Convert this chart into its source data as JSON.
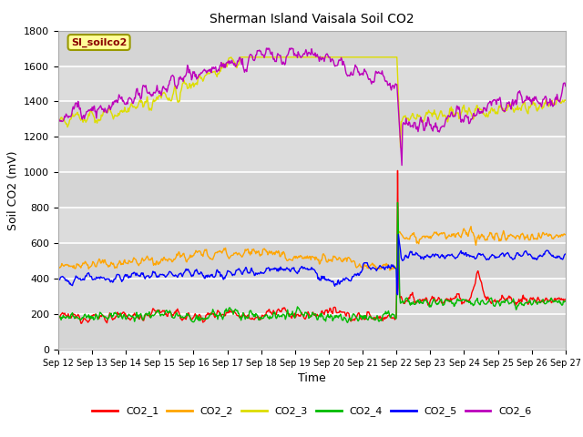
{
  "title": "Sherman Island Vaisala Soil CO2",
  "xlabel": "Time",
  "ylabel": "Soil CO2 (mV)",
  "ylim": [
    0,
    1800
  ],
  "yticks": [
    0,
    200,
    400,
    600,
    800,
    1000,
    1200,
    1400,
    1600,
    1800
  ],
  "xtick_labels": [
    "Sep 12",
    "Sep 13",
    "Sep 14",
    "Sep 15",
    "Sep 16",
    "Sep 17",
    "Sep 18",
    "Sep 19",
    "Sep 20",
    "Sep 21",
    "Sep 22",
    "Sep 23",
    "Sep 24",
    "Sep 25",
    "Sep 26",
    "Sep 27"
  ],
  "legend_labels": [
    "CO2_1",
    "CO2_2",
    "CO2_3",
    "CO2_4",
    "CO2_5",
    "CO2_6"
  ],
  "colors": {
    "CO2_1": "#FF0000",
    "CO2_2": "#FFA500",
    "CO2_3": "#DDDD00",
    "CO2_4": "#00BB00",
    "CO2_5": "#0000FF",
    "CO2_6": "#BB00BB"
  },
  "line_width": 1.0,
  "plot_bg": "#DCDCDC",
  "band_color": "#C8C8C8",
  "annotation_text": "SI_soilco2",
  "annotation_color": "#8B0000",
  "annotation_bg": "#FFFF99",
  "annotation_border": "#999900"
}
